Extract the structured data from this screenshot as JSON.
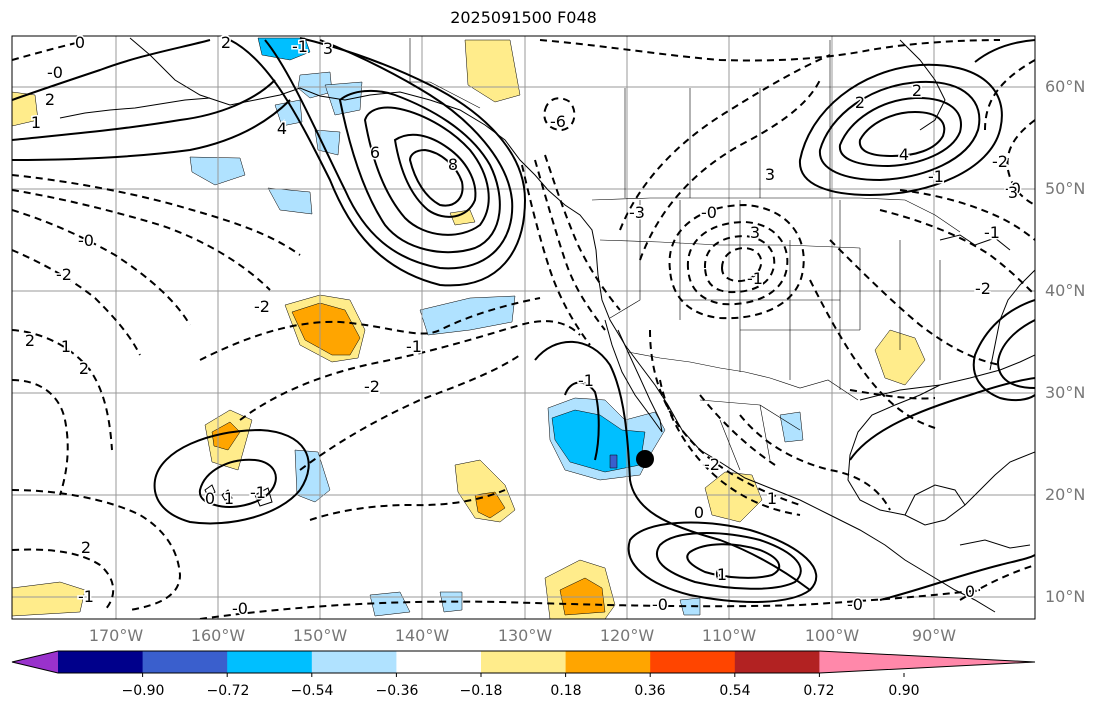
{
  "title": "2025091500 F048",
  "lat_labels": [
    "60°N",
    "50°N",
    "40°N",
    "30°N",
    "20°N",
    "10°N"
  ],
  "lon_labels": [
    "170°W",
    "160°W",
    "150°W",
    "140°W",
    "130°W",
    "120°W",
    "110°W",
    "100°W",
    "90°W"
  ],
  "colorbar": {
    "colors": [
      "#9932cc",
      "#00008b",
      "#3a5fcd",
      "#00bfff",
      "#b0e2ff",
      "#ffffff",
      "#ffec8b",
      "#ffa500",
      "#ff4500",
      "#b22222",
      "#ff88aa"
    ],
    "ticks": [
      "−0.90",
      "−0.72",
      "−0.54",
      "−0.36",
      "−0.18",
      "0.18",
      "0.36",
      "0.54",
      "0.72",
      "0.90"
    ]
  },
  "contour_labels": [
    "2",
    "3",
    "0",
    "-0",
    "2",
    "1",
    "4",
    "6",
    "8",
    "-6",
    "-3",
    "-0",
    "3",
    "2",
    "4",
    "2",
    "-1",
    "3",
    "-0",
    "-1",
    "-2",
    "-1",
    "-0",
    "-2",
    "-1",
    "2",
    "1",
    "2",
    "-2",
    "-1",
    "-2",
    "0",
    "1",
    "1",
    "0",
    "-1",
    "0",
    "-0",
    "-0",
    "1",
    "2",
    "-0",
    "-1",
    "3",
    "-2",
    "-1",
    "-2",
    "0"
  ]
}
